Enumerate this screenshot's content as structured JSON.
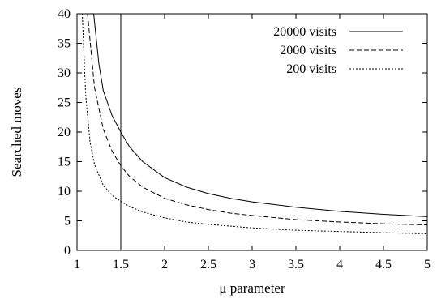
{
  "chart_data": {
    "type": "line",
    "title": "",
    "xlabel": "μ parameter",
    "ylabel": "Searched moves",
    "xlim": [
      1,
      5
    ],
    "ylim": [
      0,
      40
    ],
    "x_ticks": [
      "1",
      "1.5",
      "2",
      "2.5",
      "3",
      "3.5",
      "4",
      "4.5",
      "5"
    ],
    "y_ticks": [
      "0",
      "5",
      "10",
      "15",
      "20",
      "25",
      "30",
      "35",
      "40"
    ],
    "grid": false,
    "legend_position": "top-right",
    "vertical_line_x": 1.5,
    "series": [
      {
        "name": "20000 visits",
        "style": "solid",
        "x": [
          1.19,
          1.25,
          1.3,
          1.4,
          1.5,
          1.6,
          1.75,
          2,
          2.25,
          2.5,
          2.75,
          3,
          3.5,
          4,
          4.5,
          5
        ],
        "y": [
          40,
          31.5,
          27,
          22.8,
          20,
          17.5,
          15,
          12.3,
          10.7,
          9.6,
          8.8,
          8.2,
          7.3,
          6.6,
          6.1,
          5.7
        ]
      },
      {
        "name": "2000 visits",
        "style": "dashed",
        "x": [
          1.12,
          1.2,
          1.3,
          1.4,
          1.5,
          1.6,
          1.75,
          2,
          2.25,
          2.5,
          2.75,
          3,
          3.5,
          4,
          4.5,
          5
        ],
        "y": [
          40,
          27.5,
          20.5,
          16.8,
          14.3,
          12.5,
          10.7,
          8.8,
          7.7,
          6.9,
          6.3,
          5.9,
          5.2,
          4.8,
          4.5,
          4.3
        ]
      },
      {
        "name": "200 visits",
        "style": "dotted",
        "x": [
          1.06,
          1.1,
          1.15,
          1.2,
          1.3,
          1.4,
          1.5,
          1.6,
          1.75,
          2,
          2.25,
          2.5,
          3,
          3.5,
          4,
          4.5,
          5
        ],
        "y": [
          40,
          26,
          18.2,
          14.5,
          11,
          9.3,
          8.3,
          7.4,
          6.5,
          5.5,
          4.8,
          4.4,
          3.8,
          3.4,
          3.2,
          3.0,
          2.8
        ]
      }
    ]
  }
}
